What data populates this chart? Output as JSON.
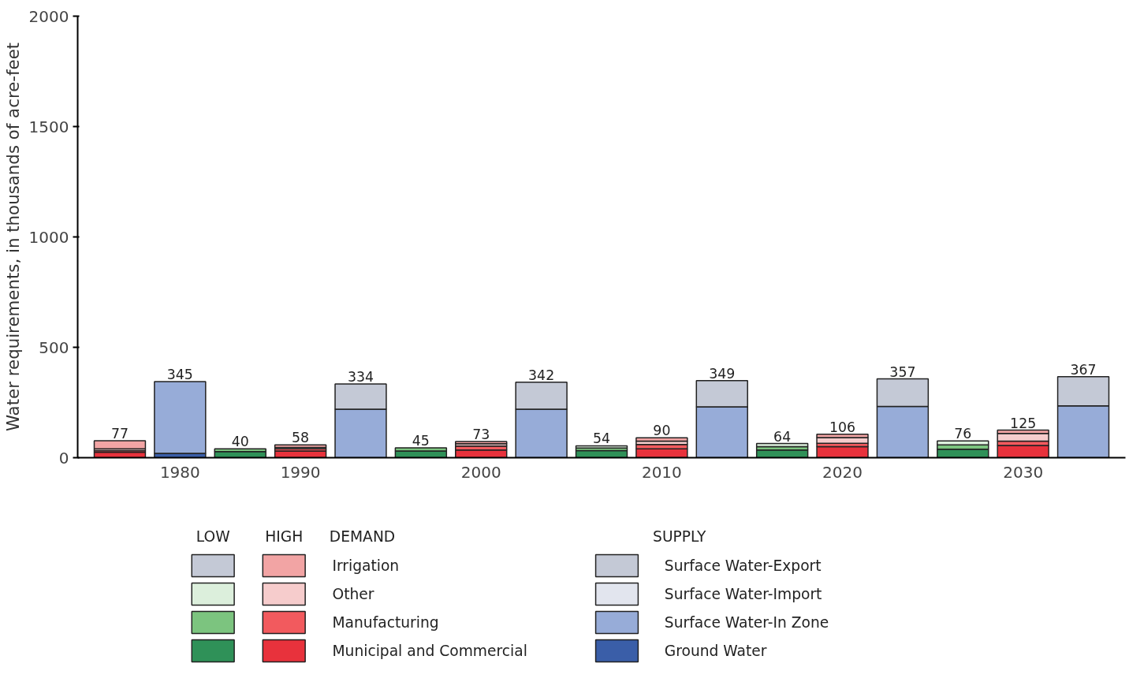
{
  "chart_data": {
    "type": "bar",
    "stacked": true,
    "ylabel": "Water requirements, in thousands of acre-feet",
    "categories": [
      null,
      "1980",
      null,
      "1990",
      null,
      null,
      "2000",
      null,
      null,
      "2010",
      null,
      null,
      "2020",
      null,
      null,
      "2030",
      null
    ],
    "ylim": [
      0,
      2000
    ],
    "yticks": [
      0,
      500,
      1000,
      1500,
      2000
    ],
    "grid": false,
    "legend": "bottom",
    "annotations": [
      "LOW",
      "HIGH",
      "DEMAND",
      "SUPPLY"
    ],
    "totals": [
      "77",
      "345",
      "40",
      "58",
      "334",
      "45",
      "73",
      "342",
      "54",
      "90",
      "349",
      "64",
      "106",
      "357",
      "76",
      "125",
      "367"
    ],
    "series": [
      {
        "name": "Municipal and Commercial",
        "colors": [
          "#e8323c",
          null,
          "#2f9158",
          "#e8323c",
          null,
          "#2f9158",
          "#e8323c",
          null,
          "#2f9158",
          "#e8323c",
          null,
          "#2f9158",
          "#e8323c",
          null,
          "#2f9158",
          "#e8323c",
          null
        ],
        "values": [
          25,
          null,
          28,
          30,
          null,
          30,
          35,
          null,
          32,
          40,
          null,
          35,
          50,
          null,
          38,
          55,
          null
        ]
      },
      {
        "name": "Manufacturing",
        "colors": [
          "#f25a5e",
          null,
          "#7cc47f",
          "#f25a5e",
          null,
          "#7cc47f",
          "#f25a5e",
          null,
          "#7cc47f",
          "#f25a5e",
          null,
          "#7cc47f",
          "#f25a5e",
          null,
          "#7cc47f",
          "#f25a5e",
          null
        ],
        "values": [
          7,
          null,
          12,
          10,
          null,
          15,
          18,
          null,
          12,
          20,
          null,
          15,
          15,
          null,
          20,
          20,
          null
        ]
      },
      {
        "name": "Other",
        "colors": [
          "#f6cccc",
          null,
          "#dcefdc",
          "#f6cccc",
          null,
          "#dcefdc",
          "#f6cccc",
          null,
          "#dcefdc",
          "#f6cccc",
          null,
          "#dcefdc",
          "#f6cccc",
          null,
          "#dcefdc",
          "#f6cccc",
          null
        ],
        "values": [
          8,
          null,
          null,
          6,
          null,
          null,
          10,
          null,
          10,
          15,
          null,
          14,
          26,
          null,
          18,
          35,
          null
        ]
      },
      {
        "name": "Irrigation",
        "colors": [
          "#f2a4a4",
          null,
          "#c4c9d6",
          "#f2a4a4",
          null,
          "#c4c9d6",
          "#f2a4a4",
          null,
          "#c4c9d6",
          "#f2a4a4",
          null,
          "#c4c9d6",
          "#f2a4a4",
          null,
          "#c4c9d6",
          "#f2a4a4",
          null
        ],
        "values": [
          37,
          null,
          null,
          12,
          null,
          null,
          10,
          null,
          null,
          15,
          null,
          null,
          15,
          null,
          null,
          15,
          null
        ]
      },
      {
        "name": "Ground Water",
        "color": "#3a5ea8",
        "values": [
          null,
          20,
          null,
          null,
          null,
          null,
          null,
          null,
          null,
          null,
          null,
          null,
          null,
          null,
          null,
          null,
          null
        ]
      },
      {
        "name": "Surface Water-In Zone",
        "color": "#97acd8",
        "values": [
          null,
          325,
          null,
          null,
          220,
          null,
          null,
          220,
          null,
          null,
          230,
          null,
          null,
          232,
          null,
          null,
          235
        ]
      },
      {
        "name": "Surface Water-Import",
        "color": "#e2e5ee",
        "values": [
          null,
          null,
          null,
          null,
          null,
          null,
          null,
          null,
          null,
          null,
          null,
          null,
          null,
          null,
          null,
          null,
          null
        ]
      },
      {
        "name": "Surface Water-Export",
        "color": "#c4c9d6",
        "values": [
          null,
          null,
          null,
          null,
          114,
          null,
          null,
          122,
          null,
          null,
          119,
          null,
          null,
          125,
          null,
          null,
          132
        ]
      }
    ]
  }
}
